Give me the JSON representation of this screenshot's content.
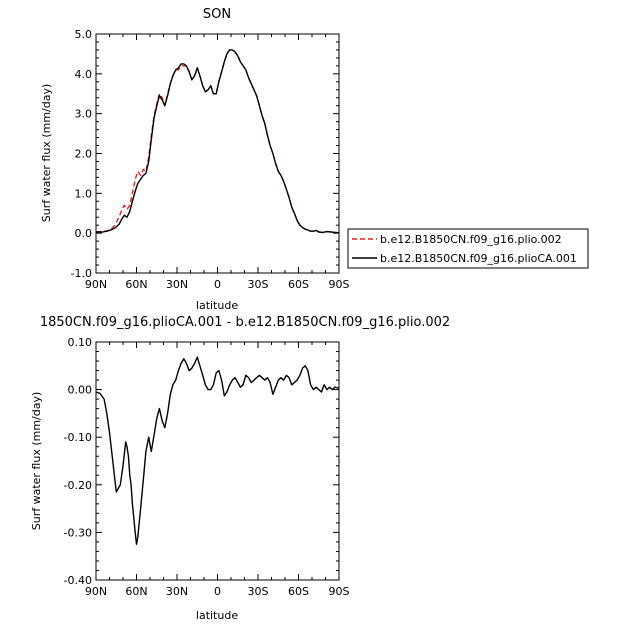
{
  "chart_data": [
    {
      "type": "line",
      "title": "SON",
      "xlabel": "latitude",
      "ylabel": "Surf water flux (mm/day)",
      "xlim": [
        90,
        -90
      ],
      "ylim": [
        -1.0,
        5.0
      ],
      "xticks": [
        90,
        60,
        30,
        0,
        -30,
        -60,
        -90
      ],
      "xtick_labels": [
        "90N",
        "60N",
        "30N",
        "0",
        "30S",
        "60S",
        "90S"
      ],
      "yticks": [
        -1,
        0,
        1,
        2,
        3,
        4,
        5
      ],
      "ytick_labels": [
        "-1.0",
        "0.0",
        "1.0",
        "2.0",
        "3.0",
        "4.0",
        "5.0"
      ],
      "legend_position": "right",
      "series": [
        {
          "name": "b.e12.B1850CN.f09_g16.plio.002",
          "color": "#e0201b",
          "style": "dashed",
          "x": [
            90,
            85,
            82,
            79,
            76,
            73,
            71,
            69,
            67,
            65,
            63,
            61,
            59,
            57,
            55,
            53,
            51,
            49,
            47,
            45,
            43,
            41,
            39,
            37,
            35,
            33,
            31,
            29,
            27,
            25,
            23,
            21,
            19,
            17,
            15,
            13,
            11,
            9,
            7,
            5,
            3,
            1,
            -1,
            -3,
            -5,
            -7,
            -9,
            -11,
            -13,
            -15,
            -17,
            -19,
            -21,
            -23,
            -25,
            -27,
            -29,
            -31,
            -33,
            -35,
            -37,
            -39,
            -41,
            -43,
            -45,
            -47,
            -49,
            -51,
            -53,
            -55,
            -57,
            -59,
            -61,
            -63,
            -65,
            -67,
            -69,
            -71,
            -73,
            -75,
            -78,
            -81,
            -84,
            -87,
            -90
          ],
          "y": [
            0.03,
            0.04,
            0.06,
            0.1,
            0.2,
            0.4,
            0.58,
            0.7,
            0.6,
            0.7,
            1.0,
            1.35,
            1.55,
            1.45,
            1.6,
            1.55,
            1.9,
            2.45,
            2.95,
            3.25,
            3.5,
            3.4,
            3.2,
            3.5,
            3.75,
            3.95,
            4.1,
            4.1,
            4.2,
            4.2,
            4.2,
            4.05,
            3.85,
            3.95,
            4.15,
            3.95,
            3.7,
            3.55,
            3.6,
            3.7,
            3.5,
            3.5,
            3.8,
            4.05,
            4.3,
            4.5,
            4.6,
            4.6,
            4.55,
            4.45,
            4.3,
            4.2,
            4.1,
            3.9,
            3.75,
            3.6,
            3.45,
            3.2,
            2.95,
            2.75,
            2.45,
            2.2,
            2.0,
            1.75,
            1.55,
            1.45,
            1.3,
            1.1,
            0.9,
            0.65,
            0.5,
            0.32,
            0.2,
            0.14,
            0.1,
            0.08,
            0.05,
            0.05,
            0.07,
            0.03,
            0.02,
            0.04,
            0.03,
            0.02,
            0.01
          ]
        },
        {
          "name": "b.e12.B1850CN.f09_g16.plioCA.001",
          "color": "#000000",
          "style": "solid",
          "x": [
            90,
            85,
            82,
            79,
            76,
            73,
            71,
            69,
            67,
            65,
            63,
            61,
            59,
            57,
            55,
            53,
            51,
            49,
            47,
            45,
            43,
            41,
            39,
            37,
            35,
            33,
            31,
            29,
            27,
            25,
            23,
            21,
            19,
            17,
            15,
            13,
            11,
            9,
            7,
            5,
            3,
            1,
            -1,
            -3,
            -5,
            -7,
            -9,
            -11,
            -13,
            -15,
            -17,
            -19,
            -21,
            -23,
            -25,
            -27,
            -29,
            -31,
            -33,
            -35,
            -37,
            -39,
            -41,
            -43,
            -45,
            -47,
            -49,
            -51,
            -53,
            -55,
            -57,
            -59,
            -61,
            -63,
            -65,
            -67,
            -69,
            -71,
            -73,
            -75,
            -78,
            -81,
            -84,
            -87,
            -90
          ],
          "y": [
            0.03,
            0.03,
            0.05,
            0.08,
            0.13,
            0.22,
            0.35,
            0.45,
            0.4,
            0.55,
            0.8,
            1.05,
            1.25,
            1.35,
            1.45,
            1.5,
            1.8,
            2.35,
            2.9,
            3.2,
            3.45,
            3.35,
            3.2,
            3.45,
            3.75,
            3.95,
            4.1,
            4.15,
            4.25,
            4.25,
            4.2,
            4.05,
            3.85,
            3.95,
            4.15,
            3.95,
            3.7,
            3.55,
            3.6,
            3.7,
            3.5,
            3.5,
            3.8,
            4.05,
            4.3,
            4.5,
            4.6,
            4.6,
            4.55,
            4.45,
            4.3,
            4.2,
            4.1,
            3.9,
            3.75,
            3.6,
            3.45,
            3.2,
            2.95,
            2.75,
            2.45,
            2.2,
            2.0,
            1.75,
            1.55,
            1.45,
            1.3,
            1.1,
            0.9,
            0.65,
            0.5,
            0.32,
            0.2,
            0.14,
            0.1,
            0.08,
            0.05,
            0.05,
            0.07,
            0.03,
            0.02,
            0.04,
            0.03,
            0.02,
            0.01
          ]
        }
      ]
    },
    {
      "type": "line",
      "title": "1850CN.f09_g16.plioCA.001 - b.e12.B1850CN.f09_g16.plio.002",
      "xlabel": "latitude",
      "ylabel": "Surf water flux (mm/day)",
      "xlim": [
        90,
        -90
      ],
      "ylim": [
        -0.4,
        0.1
      ],
      "xticks": [
        90,
        60,
        30,
        0,
        -30,
        -60,
        -90
      ],
      "xtick_labels": [
        "90N",
        "60N",
        "30N",
        "0",
        "30S",
        "60S",
        "90S"
      ],
      "yticks": [
        -0.4,
        -0.3,
        -0.2,
        -0.1,
        0.0,
        0.1
      ],
      "ytick_labels": [
        "-0.40",
        "-0.30",
        "-0.20",
        "-0.10",
        "0.00",
        "0.10"
      ],
      "series": [
        {
          "color": "#000000",
          "style": "solid",
          "x": [
            90,
            87,
            84,
            82,
            80,
            78,
            76,
            75,
            74,
            72,
            70,
            68,
            67,
            66,
            65,
            64,
            63,
            62,
            61,
            60,
            59,
            58,
            57,
            55,
            53,
            51,
            49,
            47,
            45,
            43,
            41,
            39,
            37,
            35,
            33,
            31,
            29,
            27,
            25,
            23,
            21,
            19,
            17,
            15,
            13,
            11,
            9,
            7,
            5,
            3,
            1,
            -1,
            -3,
            -5,
            -7,
            -9,
            -11,
            -13,
            -15,
            -17,
            -19,
            -21,
            -23,
            -25,
            -27,
            -29,
            -31,
            -33,
            -35,
            -37,
            -39,
            -41,
            -43,
            -45,
            -47,
            -49,
            -51,
            -53,
            -55,
            -57,
            -59,
            -61,
            -63,
            -65,
            -67,
            -69,
            -71,
            -73,
            -75,
            -77,
            -79,
            -81,
            -83,
            -85,
            -87,
            -90
          ],
          "y": [
            -0.005,
            -0.008,
            -0.02,
            -0.05,
            -0.09,
            -0.14,
            -0.19,
            -0.215,
            -0.21,
            -0.2,
            -0.16,
            -0.11,
            -0.12,
            -0.14,
            -0.18,
            -0.2,
            -0.24,
            -0.27,
            -0.3,
            -0.325,
            -0.31,
            -0.28,
            -0.25,
            -0.19,
            -0.13,
            -0.1,
            -0.13,
            -0.095,
            -0.06,
            -0.04,
            -0.065,
            -0.08,
            -0.05,
            -0.01,
            0.01,
            0.02,
            0.04,
            0.055,
            0.065,
            0.055,
            0.04,
            0.045,
            0.055,
            0.068,
            0.05,
            0.03,
            0.01,
            0.0,
            0.0,
            0.01,
            0.035,
            0.04,
            0.02,
            -0.013,
            -0.005,
            0.01,
            0.02,
            0.025,
            0.015,
            0.005,
            0.01,
            0.03,
            0.025,
            0.015,
            0.02,
            0.025,
            0.03,
            0.025,
            0.02,
            0.025,
            0.015,
            -0.01,
            0.005,
            0.02,
            0.025,
            0.02,
            0.03,
            0.025,
            0.01,
            0.015,
            0.02,
            0.03,
            0.045,
            0.05,
            0.04,
            0.01,
            0.0,
            0.005,
            0.0,
            -0.005,
            0.01,
            0.0,
            0.005,
            0.0,
            0.005,
            0.003
          ]
        }
      ]
    }
  ]
}
